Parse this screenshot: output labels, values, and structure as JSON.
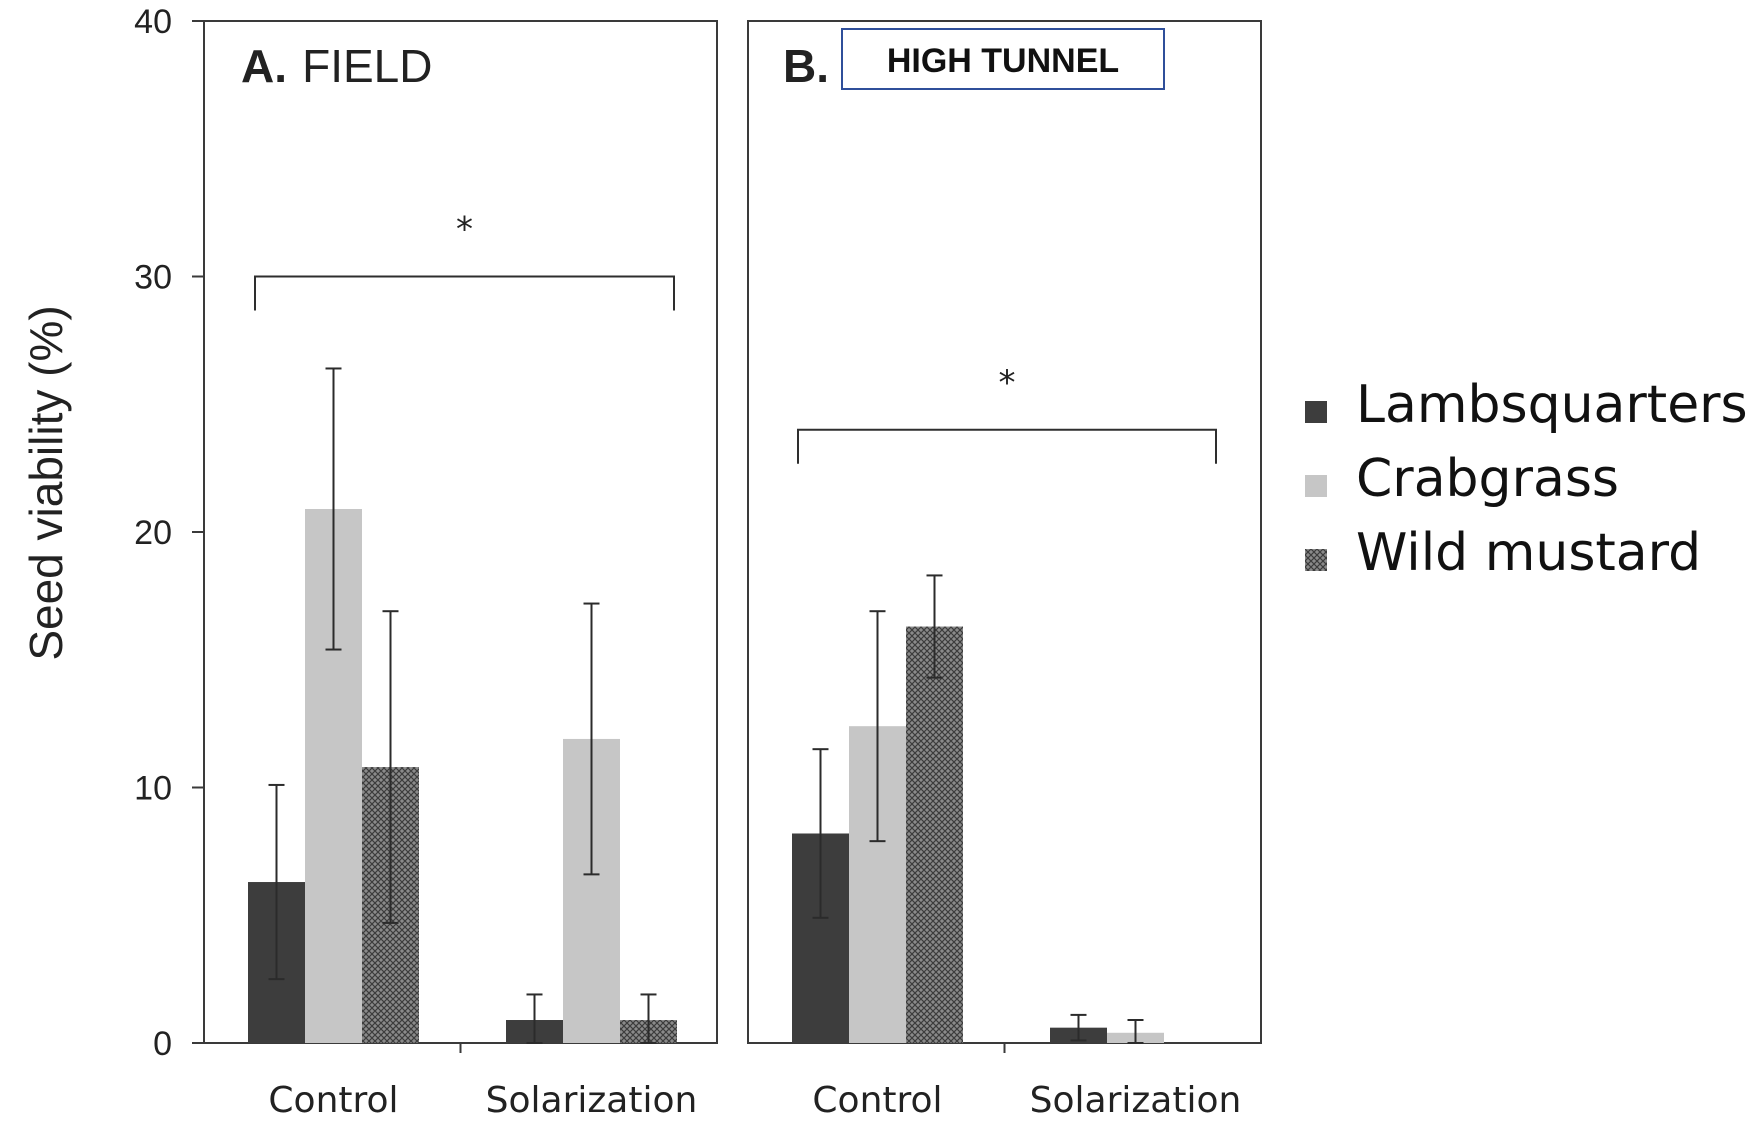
{
  "chart_data": {
    "type": "bar",
    "ylabel": "Seed viability   (%)",
    "ylim": [
      0,
      40
    ],
    "yticks": [
      "0",
      "10",
      "20",
      "30",
      "40"
    ],
    "ytick_values": [
      0,
      10,
      20,
      30,
      40
    ],
    "categories": [
      "Control",
      "Solarization"
    ],
    "legend_position": "right",
    "series_style": [
      {
        "name": "Lambsquarters",
        "color": "#3d3d3d",
        "pattern": "solid"
      },
      {
        "name": "Crabgrass",
        "color": "#c6c6c6",
        "pattern": "solid"
      },
      {
        "name": "Wild mustard",
        "color": "#6f6f6f",
        "pattern": "crosshatch"
      }
    ],
    "panels": [
      {
        "letter": "A.",
        "name": "FIELD",
        "significance": {
          "symbol": "*",
          "level": 30
        },
        "series": [
          {
            "name": "Lambsquarters",
            "values": [
              6.3,
              0.9
            ],
            "errors": [
              3.8,
              1.0
            ]
          },
          {
            "name": "Crabgrass",
            "values": [
              20.9,
              11.9
            ],
            "errors": [
              5.5,
              5.3
            ]
          },
          {
            "name": "Wild mustard",
            "values": [
              10.8,
              0.9
            ],
            "errors": [
              6.1,
              1.0
            ]
          }
        ]
      },
      {
        "letter": "B.",
        "name": "HIGH TUNNEL",
        "significance": {
          "symbol": "*",
          "level": 24
        },
        "series": [
          {
            "name": "Lambsquarters",
            "values": [
              8.2,
              0.6
            ],
            "errors": [
              3.3,
              0.5
            ]
          },
          {
            "name": "Crabgrass",
            "values": [
              12.4,
              0.4
            ],
            "errors": [
              4.5,
              0.5
            ]
          },
          {
            "name": "Wild mustard",
            "values": [
              16.3,
              0
            ],
            "errors": [
              2.0,
              0
            ]
          }
        ]
      }
    ]
  }
}
